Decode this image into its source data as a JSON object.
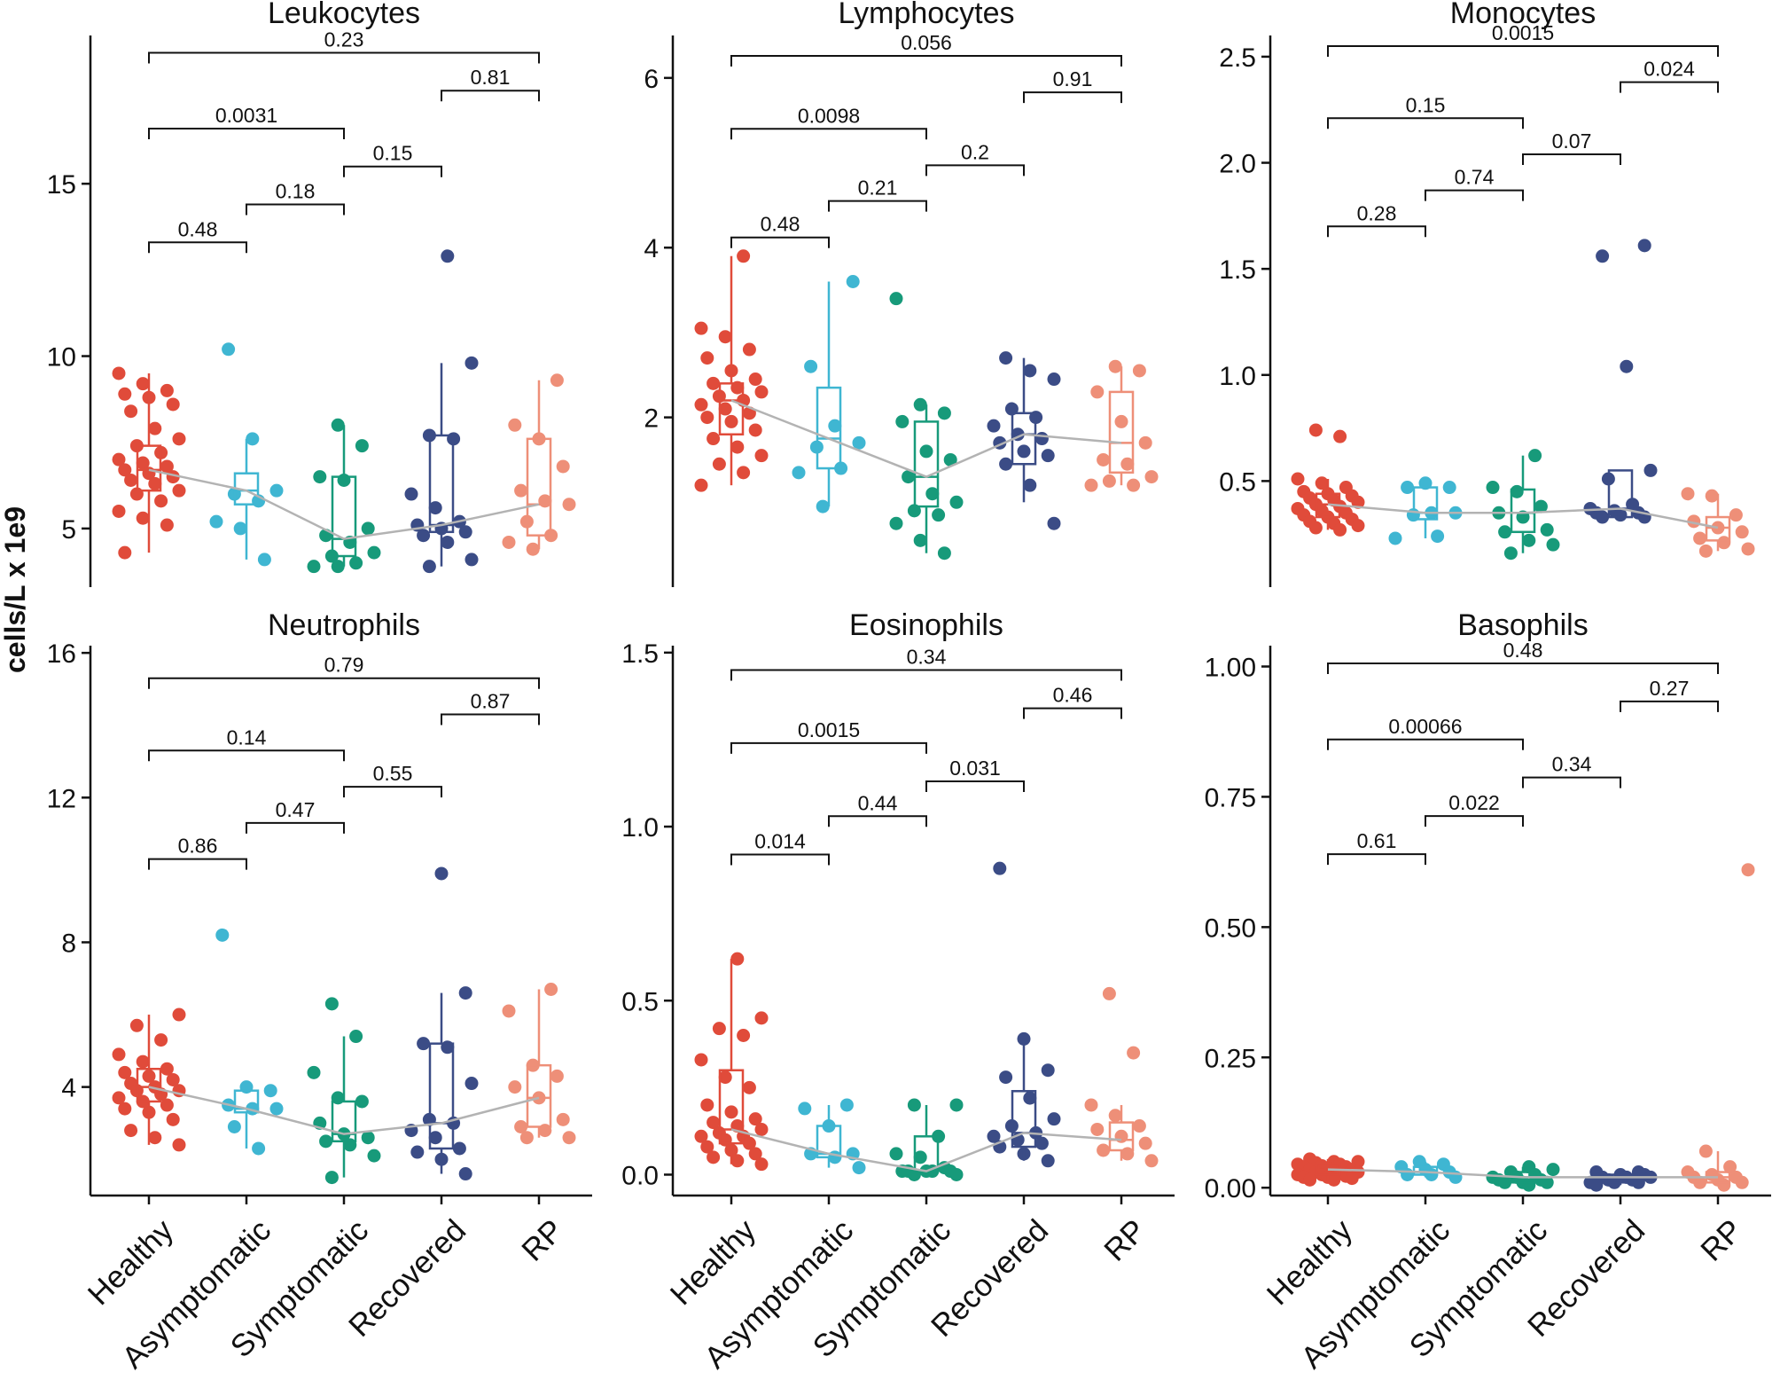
{
  "ylabel": "cells/L x 1e9",
  "categories": [
    "Healthy",
    "Asymptomatic",
    "Symptomatic",
    "Recovered",
    "RP"
  ],
  "colors": {
    "Healthy": "#e04b3a",
    "Asymptomatic": "#3fb6d2",
    "Symptomatic": "#179a7a",
    "Recovered": "#3b4c86",
    "RP": "#ee8f78",
    "trend": "#b3b3b3",
    "axis": "#111111"
  },
  "chart_data": [
    {
      "type": "box+strip",
      "title": "Leukocytes",
      "ylim": [
        3.3,
        19.3
      ],
      "yticks": [
        5,
        10,
        15
      ],
      "ytick_labels": [
        "5",
        "10",
        "15"
      ],
      "medians": [
        6.7,
        6.1,
        4.7,
        5.1,
        5.7
      ],
      "boxes": [
        {
          "q1": 6.1,
          "med": 6.7,
          "q3": 7.4,
          "lo": 4.3,
          "hi": 9.5
        },
        {
          "q1": 5.7,
          "med": 6.1,
          "q3": 6.6,
          "lo": 4.1,
          "hi": 7.6
        },
        {
          "q1": 4.2,
          "med": 4.7,
          "q3": 6.5,
          "lo": 3.9,
          "hi": 8.0
        },
        {
          "q1": 4.9,
          "med": 5.1,
          "q3": 7.7,
          "lo": 3.9,
          "hi": 9.8
        },
        {
          "q1": 4.8,
          "med": 5.7,
          "q3": 7.6,
          "lo": 4.4,
          "hi": 9.3
        }
      ],
      "points": [
        [
          9.5,
          9.2,
          9.0,
          8.9,
          8.8,
          8.6,
          8.4,
          7.9,
          7.6,
          7.4,
          7.2,
          7.0,
          6.9,
          6.8,
          6.7,
          6.6,
          6.5,
          6.4,
          6.3,
          6.1,
          6.0,
          5.8,
          5.5,
          5.3,
          5.1,
          4.3
        ],
        [
          10.2,
          7.6,
          6.1,
          6.0,
          5.8,
          5.2,
          5.0,
          4.1
        ],
        [
          8.0,
          7.4,
          6.5,
          6.4,
          5.0,
          4.8,
          4.6,
          4.3,
          4.2,
          4.0,
          3.9,
          3.9
        ],
        [
          12.9,
          9.8,
          7.7,
          7.6,
          6.0,
          5.6,
          5.2,
          5.1,
          5.0,
          4.9,
          4.8,
          4.6,
          4.1,
          3.9
        ],
        [
          9.3,
          8.0,
          7.6,
          6.8,
          6.1,
          5.8,
          5.7,
          5.2,
          4.8,
          4.6,
          4.4
        ]
      ],
      "comparisons": [
        {
          "groups": [
            1,
            2
          ],
          "label": "0.48",
          "y": 13.3
        },
        {
          "groups": [
            2,
            3
          ],
          "label": "0.18",
          "y": 14.4
        },
        {
          "groups": [
            3,
            4
          ],
          "label": "0.15",
          "y": 15.5
        },
        {
          "groups": [
            1,
            3
          ],
          "label": "0.0031",
          "y": 16.6
        },
        {
          "groups": [
            4,
            5
          ],
          "label": "0.81",
          "y": 17.7
        },
        {
          "groups": [
            1,
            5
          ],
          "label": "0.23",
          "y": 18.8
        }
      ]
    },
    {
      "type": "box+strip",
      "title": "Lymphocytes",
      "ylim": [
        0.0,
        6.5
      ],
      "yticks": [
        2,
        4,
        6
      ],
      "ytick_labels": [
        "2",
        "4",
        "6"
      ],
      "medians": [
        2.2,
        1.75,
        1.3,
        1.8,
        1.7
      ],
      "boxes": [
        {
          "q1": 1.8,
          "med": 2.2,
          "q3": 2.4,
          "lo": 1.2,
          "hi": 3.9
        },
        {
          "q1": 1.4,
          "med": 1.75,
          "q3": 2.35,
          "lo": 0.95,
          "hi": 3.6
        },
        {
          "q1": 0.95,
          "med": 1.3,
          "q3": 1.95,
          "lo": 0.4,
          "hi": 2.15
        },
        {
          "q1": 1.45,
          "med": 1.8,
          "q3": 2.05,
          "lo": 1.0,
          "hi": 2.7
        },
        {
          "q1": 1.35,
          "med": 1.7,
          "q3": 2.3,
          "lo": 1.2,
          "hi": 2.6
        }
      ],
      "points": [
        [
          3.9,
          3.05,
          2.95,
          2.8,
          2.7,
          2.55,
          2.45,
          2.4,
          2.35,
          2.3,
          2.25,
          2.2,
          2.15,
          2.1,
          2.05,
          2.0,
          1.95,
          1.85,
          1.75,
          1.65,
          1.55,
          1.45,
          1.35,
          1.2
        ],
        [
          3.6,
          2.6,
          1.9,
          1.7,
          1.65,
          1.4,
          1.35,
          0.95
        ],
        [
          3.4,
          2.15,
          2.05,
          1.95,
          1.6,
          1.5,
          1.3,
          1.1,
          1.0,
          0.9,
          0.85,
          0.75,
          0.55,
          0.4
        ],
        [
          2.7,
          2.55,
          2.45,
          2.1,
          2.0,
          1.9,
          1.8,
          1.75,
          1.7,
          1.6,
          1.55,
          1.45,
          1.2,
          0.75
        ],
        [
          2.6,
          2.55,
          2.3,
          1.95,
          1.7,
          1.5,
          1.45,
          1.3,
          1.25,
          1.2,
          1.2
        ]
      ],
      "comparisons": [
        {
          "groups": [
            1,
            2
          ],
          "label": "0.48",
          "y": 4.12
        },
        {
          "groups": [
            2,
            3
          ],
          "label": "0.21",
          "y": 4.55
        },
        {
          "groups": [
            3,
            4
          ],
          "label": "0.2",
          "y": 4.97
        },
        {
          "groups": [
            1,
            3
          ],
          "label": "0.0098",
          "y": 5.4
        },
        {
          "groups": [
            4,
            5
          ],
          "label": "0.91",
          "y": 5.83
        },
        {
          "groups": [
            1,
            5
          ],
          "label": "0.056",
          "y": 6.26
        }
      ]
    },
    {
      "type": "box+strip",
      "title": "Monocytes",
      "ylim": [
        0.0,
        2.6
      ],
      "yticks": [
        0.5,
        1.0,
        1.5,
        2.0,
        2.5
      ],
      "ytick_labels": [
        "0.5",
        "1.0",
        "1.5",
        "2.0",
        "2.5"
      ],
      "medians": [
        0.39,
        0.35,
        0.35,
        0.37,
        0.28
      ],
      "boxes": [
        {
          "q1": 0.33,
          "med": 0.39,
          "q3": 0.44,
          "lo": 0.27,
          "hi": 0.51
        },
        {
          "q1": 0.32,
          "med": 0.35,
          "q3": 0.47,
          "lo": 0.23,
          "hi": 0.47
        },
        {
          "q1": 0.26,
          "med": 0.35,
          "q3": 0.46,
          "lo": 0.16,
          "hi": 0.62
        },
        {
          "q1": 0.33,
          "med": 0.37,
          "q3": 0.55,
          "lo": 0.33,
          "hi": 0.55
        },
        {
          "q1": 0.22,
          "med": 0.28,
          "q3": 0.33,
          "lo": 0.17,
          "hi": 0.44
        }
      ],
      "points": [
        [
          0.74,
          0.71,
          0.51,
          0.49,
          0.47,
          0.45,
          0.44,
          0.43,
          0.42,
          0.41,
          0.4,
          0.39,
          0.38,
          0.37,
          0.36,
          0.35,
          0.34,
          0.33,
          0.32,
          0.31,
          0.3,
          0.29,
          0.28,
          0.27
        ],
        [
          0.49,
          0.47,
          0.47,
          0.35,
          0.35,
          0.34,
          0.24,
          0.23
        ],
        [
          0.62,
          0.47,
          0.45,
          0.38,
          0.35,
          0.33,
          0.27,
          0.26,
          0.22,
          0.2,
          0.16
        ],
        [
          1.61,
          1.56,
          1.04,
          0.55,
          0.51,
          0.39,
          0.37,
          0.36,
          0.35,
          0.35,
          0.34,
          0.33,
          0.33
        ],
        [
          0.44,
          0.43,
          0.34,
          0.31,
          0.28,
          0.26,
          0.23,
          0.21,
          0.18,
          0.17
        ]
      ],
      "comparisons": [
        {
          "groups": [
            1,
            2
          ],
          "label": "0.28",
          "y": 1.7
        },
        {
          "groups": [
            2,
            3
          ],
          "label": "0.74",
          "y": 1.87
        },
        {
          "groups": [
            3,
            4
          ],
          "label": "0.07",
          "y": 2.04
        },
        {
          "groups": [
            1,
            3
          ],
          "label": "0.15",
          "y": 2.21
        },
        {
          "groups": [
            4,
            5
          ],
          "label": "0.024",
          "y": 2.38
        },
        {
          "groups": [
            1,
            5
          ],
          "label": "0.0015",
          "y": 2.55
        }
      ]
    },
    {
      "type": "box+strip",
      "title": "Neutrophils",
      "ylim": [
        1.0,
        16.2
      ],
      "yticks": [
        4,
        8,
        12,
        16
      ],
      "ytick_labels": [
        "4",
        "8",
        "12",
        "16"
      ],
      "medians": [
        4.0,
        3.4,
        2.7,
        3.0,
        3.7
      ],
      "boxes": [
        {
          "q1": 3.6,
          "med": 4.0,
          "q3": 4.5,
          "lo": 2.4,
          "hi": 6.0
        },
        {
          "q1": 3.3,
          "med": 3.4,
          "q3": 3.9,
          "lo": 2.3,
          "hi": 4.0
        },
        {
          "q1": 2.5,
          "med": 2.7,
          "q3": 3.6,
          "lo": 1.5,
          "hi": 5.4
        },
        {
          "q1": 2.3,
          "med": 3.0,
          "q3": 5.2,
          "lo": 1.6,
          "hi": 6.6
        },
        {
          "q1": 2.9,
          "med": 3.7,
          "q3": 4.6,
          "lo": 2.6,
          "hi": 6.7
        }
      ],
      "points": [
        [
          6.0,
          5.7,
          5.3,
          4.9,
          4.7,
          4.5,
          4.4,
          4.3,
          4.2,
          4.1,
          4.0,
          3.9,
          3.9,
          3.8,
          3.7,
          3.6,
          3.5,
          3.4,
          3.3,
          3.1,
          2.8,
          2.6,
          2.4
        ],
        [
          8.2,
          4.0,
          3.9,
          3.5,
          3.4,
          3.4,
          2.9,
          2.3
        ],
        [
          6.3,
          5.4,
          4.4,
          3.7,
          3.6,
          3.0,
          2.7,
          2.6,
          2.5,
          2.4,
          2.1,
          1.5
        ],
        [
          9.9,
          6.6,
          5.2,
          5.1,
          4.1,
          3.1,
          3.0,
          2.8,
          2.6,
          2.3,
          2.2,
          2.0,
          1.6
        ],
        [
          6.7,
          6.1,
          4.6,
          4.3,
          4.0,
          3.7,
          3.1,
          2.9,
          2.8,
          2.6,
          2.6
        ]
      ],
      "comparisons": [
        {
          "groups": [
            1,
            2
          ],
          "label": "0.86",
          "y": 10.3
        },
        {
          "groups": [
            2,
            3
          ],
          "label": "0.47",
          "y": 11.3
        },
        {
          "groups": [
            3,
            4
          ],
          "label": "0.55",
          "y": 12.3
        },
        {
          "groups": [
            1,
            3
          ],
          "label": "0.14",
          "y": 13.3
        },
        {
          "groups": [
            4,
            5
          ],
          "label": "0.87",
          "y": 14.3
        },
        {
          "groups": [
            1,
            5
          ],
          "label": "0.79",
          "y": 15.3
        }
      ]
    },
    {
      "type": "box+strip",
      "title": "Eosinophils",
      "ylim": [
        -0.06,
        1.52
      ],
      "yticks": [
        0.0,
        0.5,
        1.0,
        1.5
      ],
      "ytick_labels": [
        "0.0",
        "0.5",
        "1.0",
        "1.5"
      ],
      "medians": [
        0.13,
        0.06,
        0.01,
        0.12,
        0.1
      ],
      "boxes": [
        {
          "q1": 0.09,
          "med": 0.13,
          "q3": 0.3,
          "lo": 0.03,
          "hi": 0.62
        },
        {
          "q1": 0.05,
          "med": 0.06,
          "q3": 0.14,
          "lo": 0.02,
          "hi": 0.2
        },
        {
          "q1": 0.01,
          "med": 0.01,
          "q3": 0.11,
          "lo": 0.0,
          "hi": 0.2
        },
        {
          "q1": 0.08,
          "med": 0.12,
          "q3": 0.24,
          "lo": 0.04,
          "hi": 0.39
        },
        {
          "q1": 0.07,
          "med": 0.1,
          "q3": 0.15,
          "lo": 0.04,
          "hi": 0.2
        }
      ],
      "points": [
        [
          0.62,
          0.45,
          0.42,
          0.4,
          0.33,
          0.28,
          0.25,
          0.2,
          0.18,
          0.16,
          0.15,
          0.14,
          0.13,
          0.12,
          0.11,
          0.11,
          0.1,
          0.09,
          0.08,
          0.07,
          0.06,
          0.05,
          0.04,
          0.03
        ],
        [
          0.2,
          0.19,
          0.14,
          0.06,
          0.06,
          0.05,
          0.02
        ],
        [
          0.2,
          0.2,
          0.11,
          0.06,
          0.05,
          0.02,
          0.01,
          0.01,
          0.01,
          0.01,
          0.01,
          0.0,
          0.0
        ],
        [
          0.88,
          0.39,
          0.3,
          0.28,
          0.22,
          0.16,
          0.14,
          0.12,
          0.11,
          0.1,
          0.09,
          0.08,
          0.06,
          0.04
        ],
        [
          0.52,
          0.35,
          0.2,
          0.17,
          0.14,
          0.13,
          0.11,
          0.09,
          0.07,
          0.06,
          0.04
        ]
      ],
      "comparisons": [
        {
          "groups": [
            1,
            2
          ],
          "label": "0.014",
          "y": 0.92
        },
        {
          "groups": [
            2,
            3
          ],
          "label": "0.44",
          "y": 1.03
        },
        {
          "groups": [
            3,
            4
          ],
          "label": "0.031",
          "y": 1.13
        },
        {
          "groups": [
            1,
            3
          ],
          "label": "0.0015",
          "y": 1.24
        },
        {
          "groups": [
            4,
            5
          ],
          "label": "0.46",
          "y": 1.34
        },
        {
          "groups": [
            1,
            5
          ],
          "label": "0.34",
          "y": 1.45
        }
      ]
    },
    {
      "type": "box+strip",
      "title": "Basophils",
      "ylim": [
        -0.015,
        1.04
      ],
      "yticks": [
        0.0,
        0.25,
        0.5,
        0.75,
        1.0
      ],
      "ytick_labels": [
        "0.00",
        "0.25",
        "0.50",
        "0.75",
        "1.00"
      ],
      "medians": [
        0.035,
        0.03,
        0.02,
        0.02,
        0.02
      ],
      "boxes": [
        {
          "q1": 0.025,
          "med": 0.035,
          "q3": 0.045,
          "lo": 0.015,
          "hi": 0.055
        },
        {
          "q1": 0.025,
          "med": 0.03,
          "q3": 0.04,
          "lo": 0.02,
          "hi": 0.05
        },
        {
          "q1": 0.01,
          "med": 0.02,
          "q3": 0.03,
          "lo": 0.005,
          "hi": 0.04
        },
        {
          "q1": 0.01,
          "med": 0.02,
          "q3": 0.025,
          "lo": 0.005,
          "hi": 0.03
        },
        {
          "q1": 0.01,
          "med": 0.02,
          "q3": 0.03,
          "lo": 0.005,
          "hi": 0.07
        }
      ],
      "points": [
        [
          0.055,
          0.05,
          0.05,
          0.048,
          0.045,
          0.045,
          0.042,
          0.04,
          0.04,
          0.038,
          0.035,
          0.035,
          0.033,
          0.03,
          0.03,
          0.028,
          0.025,
          0.025,
          0.022,
          0.02,
          0.02,
          0.018,
          0.015,
          0.015
        ],
        [
          0.05,
          0.045,
          0.04,
          0.035,
          0.03,
          0.025,
          0.025,
          0.02
        ],
        [
          0.04,
          0.035,
          0.03,
          0.025,
          0.02,
          0.02,
          0.015,
          0.015,
          0.01,
          0.01,
          0.01,
          0.005
        ],
        [
          0.03,
          0.03,
          0.025,
          0.025,
          0.02,
          0.02,
          0.02,
          0.015,
          0.015,
          0.01,
          0.01,
          0.01,
          0.005
        ],
        [
          0.61,
          0.07,
          0.04,
          0.03,
          0.025,
          0.02,
          0.02,
          0.015,
          0.01,
          0.01,
          0.005
        ]
      ],
      "comparisons": [
        {
          "groups": [
            1,
            2
          ],
          "label": "0.61",
          "y": 0.64
        },
        {
          "groups": [
            2,
            3
          ],
          "label": "0.022",
          "y": 0.713
        },
        {
          "groups": [
            3,
            4
          ],
          "label": "0.34",
          "y": 0.787
        },
        {
          "groups": [
            1,
            3
          ],
          "label": "0.00066",
          "y": 0.86
        },
        {
          "groups": [
            4,
            5
          ],
          "label": "0.27",
          "y": 0.933
        },
        {
          "groups": [
            1,
            5
          ],
          "label": "0.48",
          "y": 1.006
        }
      ]
    }
  ]
}
